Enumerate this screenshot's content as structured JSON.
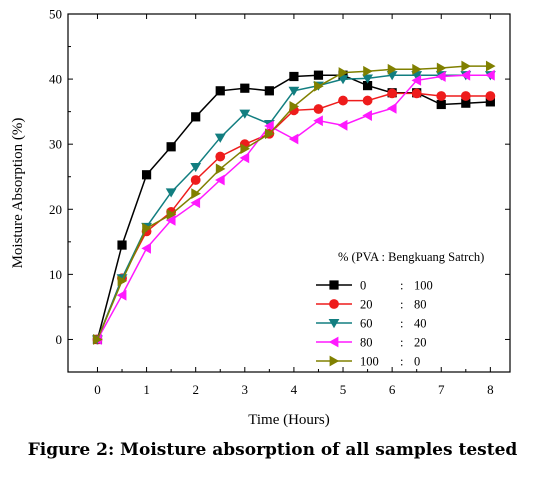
{
  "caption": "Figure 2: Moisture absorption of all samples tested",
  "chart_data": {
    "type": "line",
    "xlabel": "Time (Hours)",
    "ylabel": "Moisture Absorption (%)",
    "xlim": [
      -0.6,
      8.4
    ],
    "ylim": [
      -5,
      50
    ],
    "xticks": [
      0,
      1,
      2,
      3,
      4,
      5,
      6,
      7,
      8
    ],
    "yticks": [
      0,
      10,
      20,
      30,
      40,
      50
    ],
    "legend_title": "% (PVA : Bengkuang Satrch)",
    "legend_position": "bottom-right",
    "x": [
      0,
      0.5,
      1,
      1.5,
      2,
      2.5,
      3,
      3.5,
      4,
      4.5,
      5,
      5.5,
      6,
      6.5,
      7,
      7.5,
      8
    ],
    "series": [
      {
        "name": "0    : 100",
        "label_parts": [
          "0",
          ":",
          "100"
        ],
        "color": "#000000",
        "marker": "square",
        "values": [
          0,
          14.5,
          25.3,
          29.6,
          34.2,
          38.2,
          38.6,
          38.2,
          40.4,
          40.6,
          40.6,
          39.0,
          37.9,
          37.9,
          36.1,
          36.3,
          36.5
        ]
      },
      {
        "name": "20   : 80",
        "label_parts": [
          "20",
          ":",
          "80"
        ],
        "color": "#ee1c1c",
        "marker": "circle",
        "values": [
          0,
          9.4,
          16.6,
          19.6,
          24.5,
          28.1,
          30.0,
          31.6,
          35.2,
          35.4,
          36.7,
          36.7,
          37.8,
          37.8,
          37.4,
          37.4,
          37.4
        ]
      },
      {
        "name": "60   : 40",
        "label_parts": [
          "60",
          ":",
          "40"
        ],
        "color": "#127e80",
        "marker": "triangle-down",
        "values": [
          0,
          9.4,
          17.3,
          22.6,
          26.5,
          31.0,
          34.7,
          33.1,
          38.2,
          39.0,
          40.0,
          40.1,
          40.6,
          40.6,
          40.6,
          40.6,
          40.6
        ]
      },
      {
        "name": "80   : 20",
        "label_parts": [
          "80",
          ":",
          "20"
        ],
        "color": "#ff19ff",
        "marker": "triangle-left",
        "values": [
          0,
          6.8,
          14.0,
          18.3,
          21.0,
          24.5,
          27.9,
          32.8,
          30.8,
          33.6,
          32.9,
          34.4,
          35.5,
          39.8,
          40.4,
          40.6,
          40.6
        ]
      },
      {
        "name": "100  : 0",
        "label_parts": [
          "100",
          ":",
          "0"
        ],
        "color": "#808000",
        "marker": "triangle-right",
        "values": [
          0,
          9.0,
          17.1,
          19.2,
          22.4,
          26.2,
          29.3,
          31.6,
          35.8,
          38.9,
          41.0,
          41.2,
          41.5,
          41.5,
          41.7,
          42.0,
          42.0
        ]
      }
    ]
  }
}
